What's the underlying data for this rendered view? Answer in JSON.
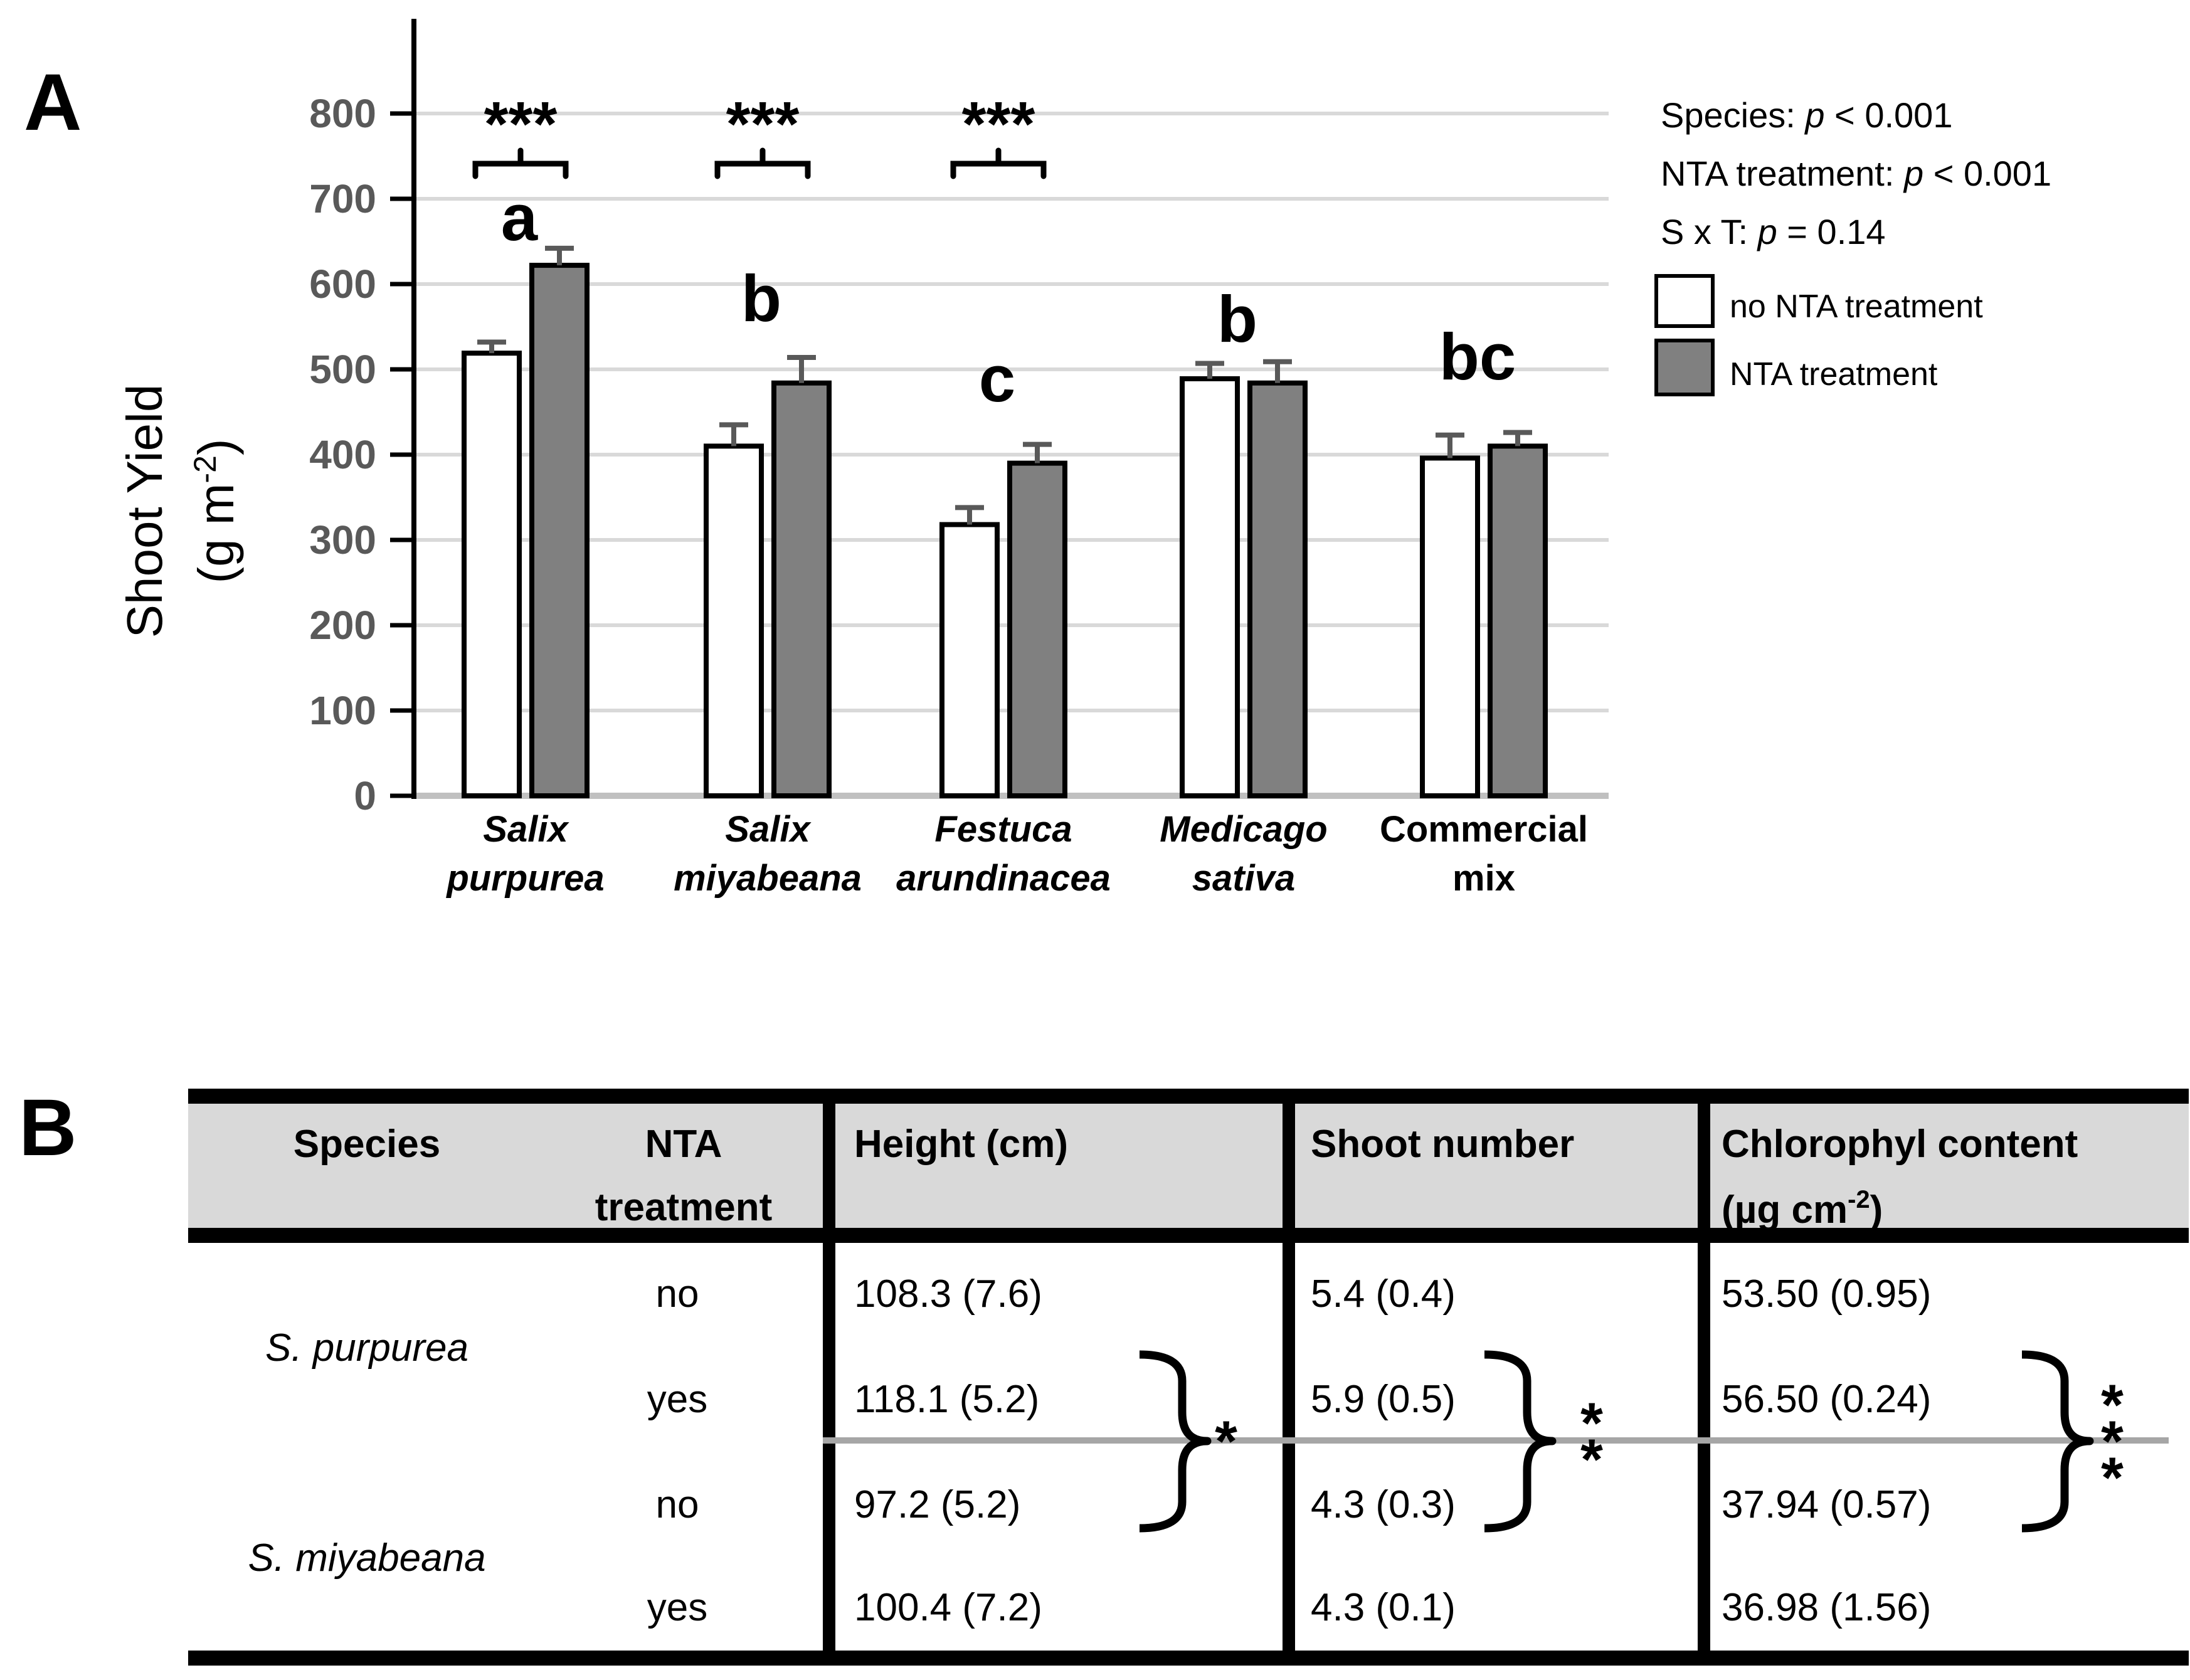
{
  "panels": {
    "a_label": "A",
    "b_label": "B"
  },
  "chart_data": {
    "type": "bar",
    "title": "",
    "ylabel_line1": "Shoot Yield",
    "ylabel_unit": {
      "pre": "(g m",
      "sup": "-2",
      "post": ")"
    },
    "ylim": [
      0,
      800
    ],
    "ytick_step": 100,
    "ytick_labels": [
      "0",
      "100",
      "200",
      "300",
      "400",
      "500",
      "600",
      "700",
      "800"
    ],
    "grid": true,
    "legend_position": "top-right",
    "categories": [
      {
        "line1": "Salix",
        "line2": "purpurea",
        "italic": true
      },
      {
        "line1": "Salix",
        "line2": "miyabeana",
        "italic": true
      },
      {
        "line1": "Festuca",
        "line2": "arundinacea",
        "italic": true
      },
      {
        "line1": "Medicago",
        "line2": "sativa",
        "italic": true
      },
      {
        "line1": "Commercial",
        "line2": "mix",
        "italic": false
      }
    ],
    "series": [
      {
        "name": "no NTA treatment",
        "fill": "#ffffff",
        "values": [
          519,
          410,
          318,
          489,
          396
        ],
        "errors": [
          13,
          25,
          20,
          18,
          27
        ]
      },
      {
        "name": "NTA treatment",
        "fill": "#808080",
        "values": [
          622,
          484,
          390,
          484,
          410
        ],
        "errors": [
          20,
          30,
          22,
          25,
          16
        ]
      }
    ],
    "group_letters": [
      "a",
      "b",
      "c",
      "b",
      "bc"
    ],
    "significance": [
      {
        "group": 0,
        "stars": "***"
      },
      {
        "group": 1,
        "stars": "***"
      },
      {
        "group": 2,
        "stars": "***"
      }
    ],
    "stats_lines": [
      {
        "pre": "Species: ",
        "p": "p",
        "post": " < 0.001"
      },
      {
        "pre": "NTA treatment: ",
        "p": "p",
        "post": " < 0.001"
      },
      {
        "pre": "S x T: ",
        "p": "p",
        "post": " = 0.14"
      }
    ],
    "legend": [
      {
        "label": "no NTA treatment",
        "fill": "#ffffff"
      },
      {
        "label": "NTA treatment",
        "fill": "#808080"
      }
    ],
    "colors": {
      "grid": "#d9d9d9",
      "baseline": "#c0c0c0",
      "axis": "#000000",
      "tick_label": "#595959",
      "error_bar": "#595959",
      "bar_outline": "#000000"
    }
  },
  "table": {
    "headers": {
      "species": "Species",
      "nta_line1": "NTA",
      "nta_line2": "treatment",
      "height": "Height (cm)",
      "shoot": "Shoot number",
      "chloro_line1": "Chlorophyl content",
      "chloro_unit_pre": "(µg cm",
      "chloro_unit_sup": "-2",
      "chloro_unit_post": ")"
    },
    "species_groups": [
      {
        "name": "S. purpurea"
      },
      {
        "name": "S. miyabeana"
      }
    ],
    "rows": [
      {
        "nta": "no",
        "height": "108.3 (7.6)",
        "shoot": "5.4 (0.4)",
        "chloro": "53.50 (0.95)"
      },
      {
        "nta": "yes",
        "height": "118.1 (5.2)",
        "shoot": "5.9 (0.5)",
        "chloro": "56.50 (0.24)"
      },
      {
        "nta": "no",
        "height": "97.2 (5.2)",
        "shoot": "4.3 (0.3)",
        "chloro": "37.94 (0.57)"
      },
      {
        "nta": "yes",
        "height": "100.4 (7.2)",
        "shoot": "4.3 (0.1)",
        "chloro": "36.98 (1.56)"
      }
    ],
    "significance": [
      {
        "column": "height",
        "stars": "*"
      },
      {
        "column": "shoot",
        "stars": "**"
      },
      {
        "column": "chloro",
        "stars": "***"
      }
    ]
  }
}
